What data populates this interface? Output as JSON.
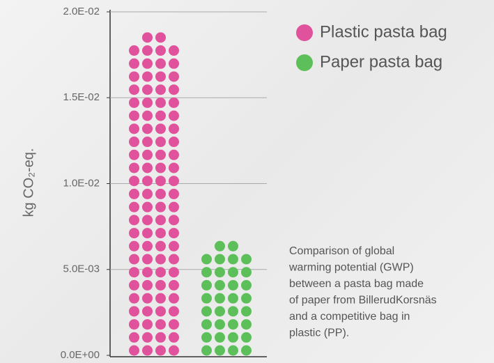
{
  "chart_data": {
    "type": "dot-bar",
    "y_label": "kg CO₂-eq.",
    "categories": [
      null
    ],
    "series": [
      {
        "name": "Plastic pasta bag",
        "color": "#e0529b",
        "values": [
          0.019
        ]
      },
      {
        "name": "Paper pasta bag",
        "color": "#5cbf5a",
        "values": [
          0.0066
        ]
      }
    ],
    "ylim": [
      0,
      0.02
    ],
    "yticks": [
      {
        "value": 0,
        "label": "0.0E+00"
      },
      {
        "value": 0.005,
        "label": "5.0E-03"
      },
      {
        "value": 0.01,
        "label": "1.0E-02"
      },
      {
        "value": 0.015,
        "label": "1.5E-02"
      },
      {
        "value": 0.02,
        "label": "2.0E-02"
      }
    ],
    "grid": true,
    "legend": "top-right",
    "annotation": [
      "Comparison of global",
      "warming potential (GWP)",
      "between a pasta bag made",
      "of paper from BillerudKorsnäs",
      "and a competitive bag in",
      "plastic (PP)."
    ]
  }
}
